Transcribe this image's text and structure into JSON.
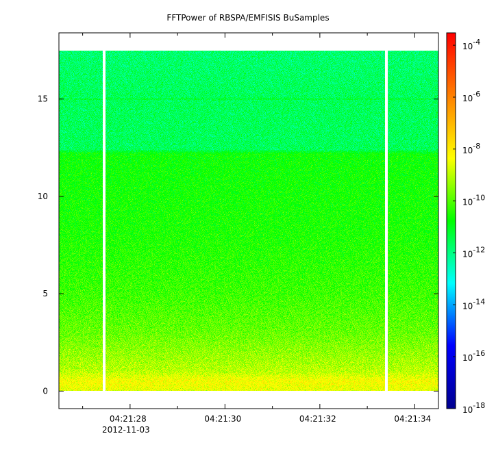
{
  "chart_data": {
    "type": "heatmap",
    "title": "FFTPower of RBSPA/EMFISIS  BuSamples",
    "xlabel": "",
    "ylabel": "",
    "x_ticks": [
      {
        "label": "04:21:28",
        "sub": "2012-11-03",
        "t": 28
      },
      {
        "label": "04:21:30",
        "t": 30
      },
      {
        "label": "04:21:32",
        "t": 32
      },
      {
        "label": "04:21:34",
        "t": 34
      }
    ],
    "x_minor_ticks": [
      27,
      29,
      31,
      33
    ],
    "xlim": [
      26.5,
      34.5
    ],
    "y_ticks": [
      0,
      5,
      10,
      15
    ],
    "ylim": [
      -0.9,
      18.4
    ],
    "data_extent": {
      "t_start": 26.5,
      "t_end": 34.5,
      "f_min": 0,
      "f_max": 17.5
    },
    "gaps_t": [
      27.45,
      33.4
    ],
    "spectrum_profile": [
      {
        "y": 0.0,
        "log_power": -8.6
      },
      {
        "y": 0.5,
        "log_power": -8.3
      },
      {
        "y": 1.0,
        "log_power": -9.0
      },
      {
        "y": 2.0,
        "log_power": -9.4
      },
      {
        "y": 3.0,
        "log_power": -9.8
      },
      {
        "y": 5.0,
        "log_power": -10.2
      },
      {
        "y": 8.0,
        "log_power": -10.5
      },
      {
        "y": 12.2,
        "log_power": -10.7
      },
      {
        "y": 12.4,
        "log_power": -11.6
      },
      {
        "y": 14.95,
        "log_power": -11.6
      },
      {
        "y": 15.0,
        "log_power": -11.0
      },
      {
        "y": 15.05,
        "log_power": -11.6
      },
      {
        "y": 17.5,
        "log_power": -11.8
      }
    ],
    "colorbar": {
      "scale": "log",
      "range": [
        1e-18,
        0.0003
      ],
      "ticks": [
        {
          "base": "10",
          "exp": "-4",
          "log": -4
        },
        {
          "base": "10",
          "exp": "-6",
          "log": -6
        },
        {
          "base": "10",
          "exp": "-8",
          "log": -8
        },
        {
          "base": "10",
          "exp": "-10",
          "log": -10
        },
        {
          "base": "10",
          "exp": "-12",
          "log": -12
        },
        {
          "base": "10",
          "exp": "-14",
          "log": -14
        },
        {
          "base": "10",
          "exp": "-16",
          "log": -16
        },
        {
          "base": "10",
          "exp": "-18",
          "log": -18
        }
      ],
      "colormap": [
        "#00008f",
        "#0000ff",
        "#00ffff",
        "#00ff00",
        "#ffff00",
        "#ff8000",
        "#ff0000"
      ]
    }
  }
}
